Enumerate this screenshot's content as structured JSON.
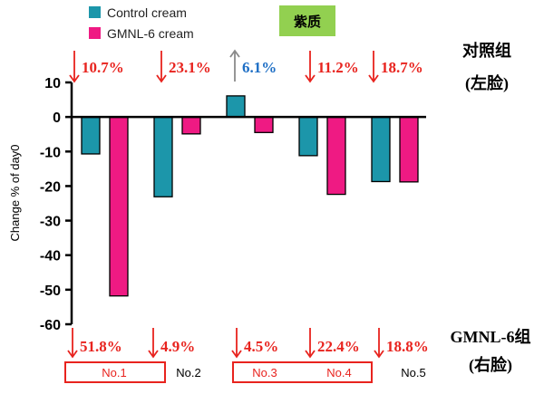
{
  "chart_data": {
    "type": "bar",
    "ylabel": "Change % of day0",
    "ylim": [
      -60,
      10
    ],
    "yticks": [
      10,
      0,
      -10,
      -20,
      -30,
      -40,
      -50,
      -60
    ],
    "categories": [
      "No.1",
      "No.2",
      "No.3",
      "No.4",
      "No.5"
    ],
    "series": [
      {
        "name": "Control cream",
        "color": "#1c96aa",
        "values": [
          -10.7,
          -23.1,
          6.1,
          -11.2,
          -18.7
        ]
      },
      {
        "name": "GMNL-6 cream",
        "color": "#ef1a83",
        "values": [
          -51.8,
          -4.9,
          -4.5,
          -22.4,
          -18.8
        ]
      }
    ],
    "top_annotations": [
      {
        "text": "10.7%",
        "direction": "down",
        "color": "#e8231e"
      },
      {
        "text": "23.1%",
        "direction": "down",
        "color": "#e8231e"
      },
      {
        "text": "6.1%",
        "direction": "up",
        "color": "#1f6fc5",
        "arrow_color": "#8a8a8a"
      },
      {
        "text": "11.2%",
        "direction": "down",
        "color": "#e8231e"
      },
      {
        "text": "18.7%",
        "direction": "down",
        "color": "#e8231e"
      }
    ],
    "bottom_annotations": [
      {
        "text": "51.8%",
        "direction": "down",
        "color": "#e8231e"
      },
      {
        "text": "4.9%",
        "direction": "down",
        "color": "#e8231e"
      },
      {
        "text": "4.5%",
        "direction": "down",
        "color": "#e8231e"
      },
      {
        "text": "22.4%",
        "direction": "down",
        "color": "#e8231e"
      },
      {
        "text": "18.8%",
        "direction": "down",
        "color": "#e8231e"
      }
    ],
    "subject_labels": [
      {
        "text": "No.1",
        "highlighted": true
      },
      {
        "text": "No.2",
        "highlighted": false
      },
      {
        "text": "No.3",
        "highlighted": true
      },
      {
        "text": "No.4",
        "highlighted": true
      },
      {
        "text": "No.5",
        "highlighted": false
      }
    ],
    "title_tag": "紫质",
    "title_tag_color": "#92d050",
    "side_labels": {
      "control_line1": "对照组",
      "control_line2": "(左脸)",
      "gmnl_line1": "GMNL-6组",
      "gmnl_line2": "(右脸)"
    },
    "highlight_box_color": "#e8231e",
    "highlight_text_color": "#e8231e"
  }
}
